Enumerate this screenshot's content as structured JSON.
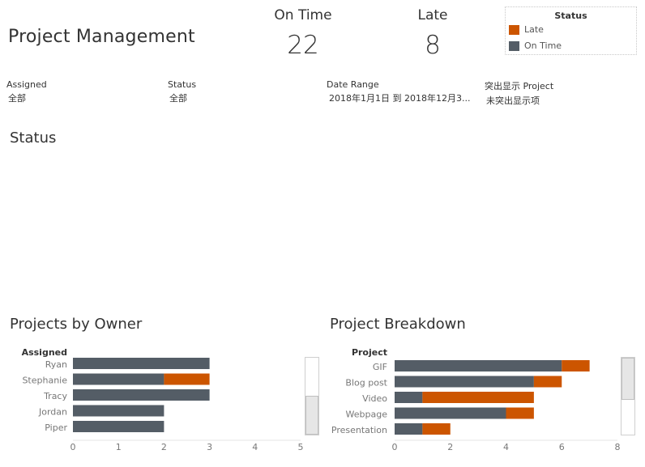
{
  "page_title": "Project Management",
  "kpis": [
    {
      "label": "On Time",
      "value": "22"
    },
    {
      "label": "Late",
      "value": "8"
    }
  ],
  "legend": {
    "title": "Status",
    "items": [
      {
        "label": "Late",
        "color": "#cc5500"
      },
      {
        "label": "On Time",
        "color": "#545d66"
      }
    ]
  },
  "filters": [
    {
      "label": "Assigned",
      "value": "全部"
    },
    {
      "label": "Status",
      "value": "全部"
    },
    {
      "label": "Date Range",
      "value": "2018年1月1日 到 2018年12月3..."
    },
    {
      "label": "突出显示 Project",
      "value": "未突出显示项"
    }
  ],
  "status_section_title": "Status",
  "chart_data": [
    {
      "type": "bar",
      "orientation": "horizontal",
      "stacked": true,
      "title": "Projects by Owner",
      "row_header": "Assigned",
      "categories": [
        "Ryan",
        "Stephanie",
        "Tracy",
        "Jordan",
        "Piper"
      ],
      "series": [
        {
          "name": "On Time",
          "color": "#545d66",
          "values": [
            3,
            2,
            3,
            2,
            2
          ]
        },
        {
          "name": "Late",
          "color": "#cc5500",
          "values": [
            0,
            1,
            0,
            0,
            0
          ]
        }
      ],
      "xlim": [
        0,
        5
      ],
      "xticks": [
        "0",
        "1",
        "2",
        "3",
        "4",
        "5"
      ]
    },
    {
      "type": "bar",
      "orientation": "horizontal",
      "stacked": true,
      "title": "Project Breakdown",
      "row_header": "Project",
      "categories": [
        "GIF",
        "Blog post",
        "Video",
        "Webpage",
        "Presentation"
      ],
      "series": [
        {
          "name": "On Time",
          "color": "#545d66",
          "values": [
            6,
            5,
            1,
            4,
            1
          ]
        },
        {
          "name": "Late",
          "color": "#cc5500",
          "values": [
            1,
            1,
            4,
            1,
            1
          ]
        }
      ],
      "xlim": [
        0,
        8
      ],
      "xticks": [
        "0",
        "2",
        "4",
        "6",
        "8"
      ]
    }
  ]
}
